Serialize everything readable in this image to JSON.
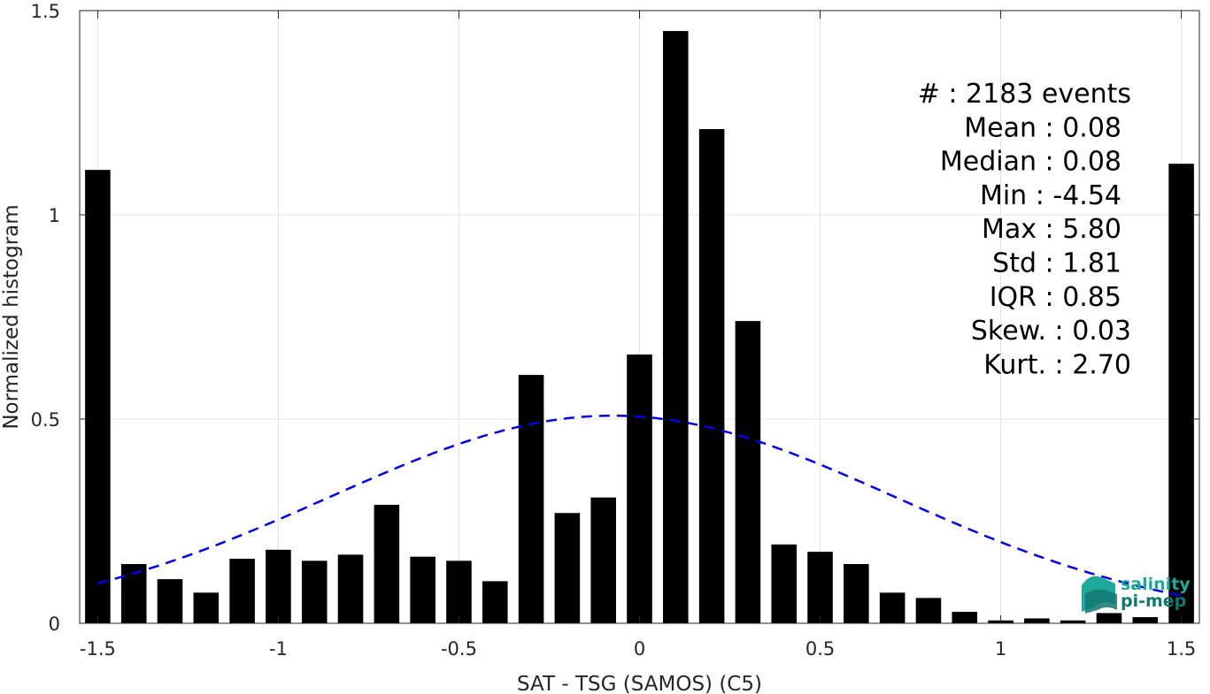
{
  "chart_data": {
    "type": "bar",
    "xlabel": "SAT - TSG (SAMOS) (C5)",
    "ylabel": "Normalized histogram",
    "xlim": [
      -1.55,
      1.55
    ],
    "ylim": [
      0,
      1.5
    ],
    "xticks": [
      -1.5,
      -1,
      -0.5,
      0,
      0.5,
      1,
      1.5
    ],
    "xtick_labels": [
      "-1.5",
      "-1",
      "-0.5",
      "0",
      "0.5",
      "1",
      "1.5"
    ],
    "yticks": [
      0,
      0.5,
      1,
      1.5
    ],
    "ytick_labels": [
      "0",
      "0.5",
      "1",
      "1.5"
    ],
    "grid": true,
    "bar_width": 0.07,
    "bars": {
      "x": [
        -1.5,
        -1.4,
        -1.3,
        -1.2,
        -1.1,
        -1.0,
        -0.9,
        -0.8,
        -0.7,
        -0.6,
        -0.5,
        -0.4,
        -0.3,
        -0.2,
        -0.1,
        0.0,
        0.1,
        0.2,
        0.3,
        0.4,
        0.5,
        0.6,
        0.7,
        0.8,
        0.9,
        1.0,
        1.1,
        1.2,
        1.3,
        1.4,
        1.5
      ],
      "values": [
        1.11,
        0.145,
        0.108,
        0.075,
        0.158,
        0.18,
        0.153,
        0.168,
        0.29,
        0.163,
        0.153,
        0.103,
        0.608,
        0.27,
        0.308,
        0.658,
        1.45,
        1.21,
        0.74,
        0.193,
        0.175,
        0.145,
        0.075,
        0.062,
        0.028,
        0.007,
        0.012,
        0.007,
        0.025,
        0.015,
        1.125
      ]
    },
    "fit": {
      "style": "dashed",
      "color": "#0000ee",
      "mean": -0.075,
      "std": 0.785,
      "x_range": [
        -1.5,
        1.5
      ]
    },
    "stats_lines": [
      "#  : 2183 events",
      "Mean : 0.08",
      "Median : 0.08",
      "Min : -4.54",
      "Max : 5.80",
      "Std : 1.81",
      "IQR : 0.85",
      "Skew. : 0.03",
      "Kurt. : 2.70"
    ]
  },
  "logo": {
    "line1": "salinity",
    "line2": "pi-mep",
    "colors": [
      "#1fa99a",
      "#12786e"
    ]
  }
}
